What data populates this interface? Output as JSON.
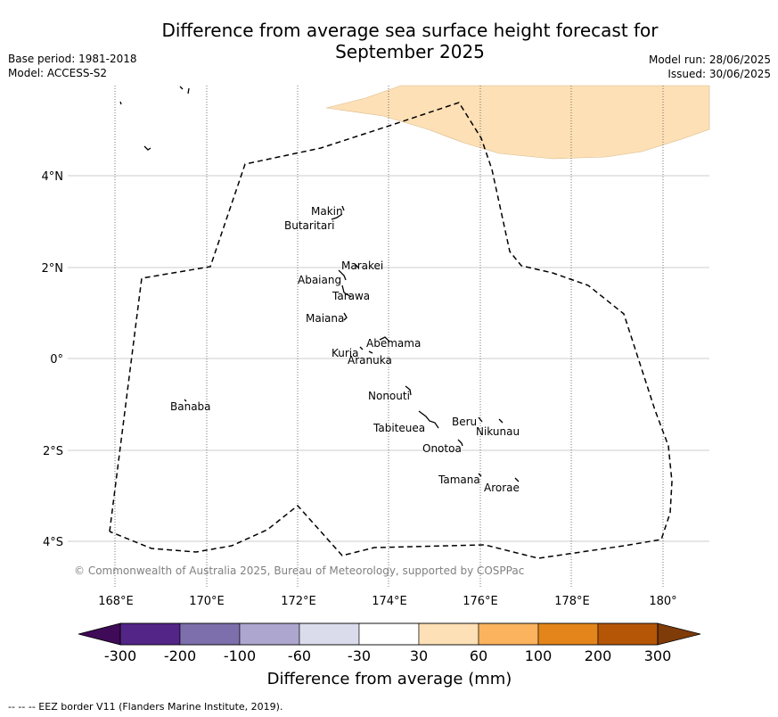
{
  "title_line1": "Difference from average sea surface height forecast for",
  "title_line2": "September 2025",
  "base_period": "Base period: 1981-2018",
  "model": "Model: ACCESS-S2",
  "model_run": "Model run: 28/06/2025",
  "issued": "Issued: 30/06/2025",
  "copyright": "© Commonwealth of Australia 2025, Bureau of Meteorology, supported by COSPPac",
  "eez_credit": "--  --  -- EEZ border V11 (Flanders Marine Institute, 2019).",
  "axes": {
    "lon_ticks": [
      "168°E",
      "170°E",
      "172°E",
      "174°E",
      "176°E",
      "178°E",
      "180°"
    ],
    "lat_ticks": [
      "4°N",
      "2°N",
      "0°",
      "2°S",
      "4°S"
    ]
  },
  "islands": [
    {
      "name": "Makin"
    },
    {
      "name": "Butaritari"
    },
    {
      "name": "Marakei"
    },
    {
      "name": "Abaiang"
    },
    {
      "name": "Tarawa"
    },
    {
      "name": "Maiana"
    },
    {
      "name": "Abemama"
    },
    {
      "name": "Kuria"
    },
    {
      "name": "Aranuka"
    },
    {
      "name": "Nonouti"
    },
    {
      "name": "Banaba"
    },
    {
      "name": "Beru"
    },
    {
      "name": "Nikunau"
    },
    {
      "name": "Tabiteuea"
    },
    {
      "name": "Onotoa"
    },
    {
      "name": "Tamana"
    },
    {
      "name": "Arorae"
    }
  ],
  "colorbar": {
    "title": "Difference from average (mm)",
    "tick_labels": [
      "-300",
      "-200",
      "-100",
      "-60",
      "-30",
      "30",
      "60",
      "100",
      "200",
      "300"
    ],
    "colors": {
      "below_min": "#3f0a57",
      "bins": [
        "#522586",
        "#7d6fab",
        "#ada7cf",
        "#dadbeb",
        "#ffffff",
        "#fde0b6",
        "#fbb35e",
        "#e3851a",
        "#b55606"
      ],
      "above_max": "#7f3b08"
    }
  },
  "shading": {
    "region": "north-east",
    "range": "30 to 60",
    "color": "#fde0b6"
  }
}
